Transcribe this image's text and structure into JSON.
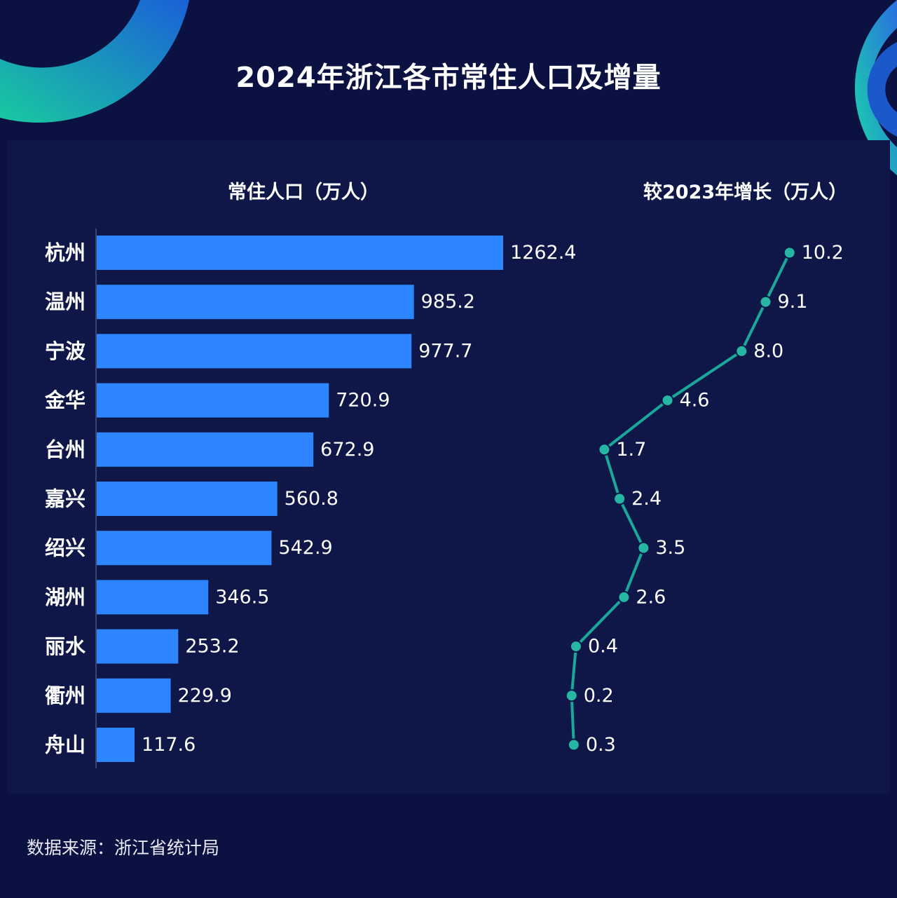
{
  "title": "2024年浙江各市常住人口及增量",
  "source": "数据来源：浙江省统计局",
  "colors": {
    "background": "#0b1141",
    "panel": "#0e1748",
    "bar": "#2d86ff",
    "line": "#19a89a",
    "marker_fill": "#27b5a4"
  },
  "chart_data": [
    {
      "type": "bar",
      "orientation": "horizontal",
      "title": "常住人口（万人）",
      "categories": [
        "杭州",
        "温州",
        "宁波",
        "金华",
        "台州",
        "嘉兴",
        "绍兴",
        "湖州",
        "丽水",
        "衢州",
        "舟山"
      ],
      "values": [
        1262.4,
        985.2,
        977.7,
        720.9,
        672.9,
        560.8,
        542.9,
        346.5,
        253.2,
        229.9,
        117.6
      ],
      "value_labels": [
        "1262.4",
        "985.2",
        "977.7",
        "720.9",
        "672.9",
        "560.8",
        "542.9",
        "346.5",
        "253.2",
        "229.9",
        "117.6"
      ],
      "xlim": [
        0,
        1400
      ],
      "grid": false
    },
    {
      "type": "line",
      "title": "较2023年增长（万人）",
      "categories": [
        "杭州",
        "温州",
        "宁波",
        "金华",
        "台州",
        "嘉兴",
        "绍兴",
        "湖州",
        "丽水",
        "衢州",
        "舟山"
      ],
      "values": [
        10.2,
        9.1,
        8.0,
        4.6,
        1.7,
        2.4,
        3.5,
        2.6,
        0.4,
        0.2,
        0.3
      ],
      "value_labels": [
        "10.2",
        "9.1",
        "8.0",
        "4.6",
        "1.7",
        "2.4",
        "3.5",
        "2.6",
        "0.4",
        "0.2",
        "0.3"
      ],
      "grid": false
    }
  ]
}
